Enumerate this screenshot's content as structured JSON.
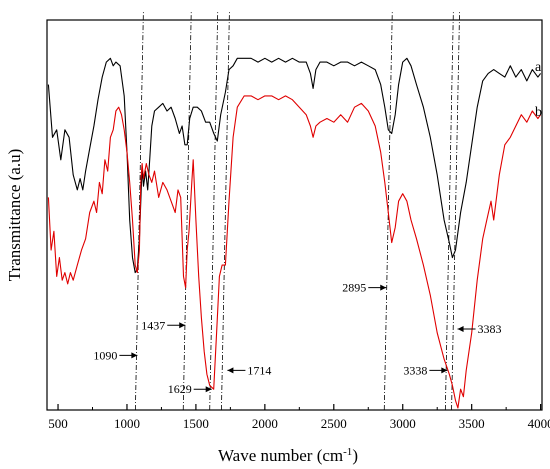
{
  "chart_data": {
    "type": "line",
    "title": "",
    "xlabel": "Wave number (cm",
    "xlabel_sup": "-1",
    "xlabel_close": ")",
    "ylabel": "Transmittance (a.u)",
    "xlim": [
      420,
      4010
    ],
    "ylim": [
      0,
      1
    ],
    "y_tick_labels": "none",
    "x_ticks": [
      500,
      1000,
      1500,
      2000,
      2500,
      3000,
      3500,
      4000
    ],
    "x_tick_labels": [
      "500",
      "1000",
      "1500",
      "2000",
      "2500",
      "3000",
      "3500",
      "4000"
    ],
    "grid": false,
    "series": [
      {
        "name": "a",
        "color": "#000000",
        "points": [
          [
            430,
            0.86
          ],
          [
            460,
            0.72
          ],
          [
            490,
            0.74
          ],
          [
            520,
            0.66
          ],
          [
            550,
            0.74
          ],
          [
            580,
            0.72
          ],
          [
            610,
            0.62
          ],
          [
            640,
            0.58
          ],
          [
            660,
            0.61
          ],
          [
            680,
            0.58
          ],
          [
            700,
            0.63
          ],
          [
            730,
            0.69
          ],
          [
            760,
            0.75
          ],
          [
            790,
            0.82
          ],
          [
            820,
            0.88
          ],
          [
            850,
            0.92
          ],
          [
            880,
            0.93
          ],
          [
            900,
            0.91
          ],
          [
            920,
            0.92
          ],
          [
            950,
            0.91
          ],
          [
            980,
            0.83
          ],
          [
            1000,
            0.68
          ],
          [
            1020,
            0.5
          ],
          [
            1040,
            0.4
          ],
          [
            1060,
            0.36
          ],
          [
            1075,
            0.37
          ],
          [
            1090,
            0.45
          ],
          [
            1100,
            0.55
          ],
          [
            1110,
            0.64
          ],
          [
            1120,
            0.59
          ],
          [
            1135,
            0.63
          ],
          [
            1150,
            0.58
          ],
          [
            1165,
            0.66
          ],
          [
            1180,
            0.75
          ],
          [
            1200,
            0.79
          ],
          [
            1230,
            0.8
          ],
          [
            1260,
            0.81
          ],
          [
            1290,
            0.79
          ],
          [
            1320,
            0.8
          ],
          [
            1350,
            0.77
          ],
          [
            1380,
            0.73
          ],
          [
            1400,
            0.75
          ],
          [
            1420,
            0.7
          ],
          [
            1437,
            0.7
          ],
          [
            1455,
            0.77
          ],
          [
            1480,
            0.8
          ],
          [
            1510,
            0.8
          ],
          [
            1540,
            0.79
          ],
          [
            1570,
            0.76
          ],
          [
            1600,
            0.76
          ],
          [
            1630,
            0.73
          ],
          [
            1655,
            0.71
          ],
          [
            1680,
            0.78
          ],
          [
            1714,
            0.84
          ],
          [
            1740,
            0.9
          ],
          [
            1770,
            0.91
          ],
          [
            1800,
            0.93
          ],
          [
            1850,
            0.93
          ],
          [
            1900,
            0.93
          ],
          [
            1950,
            0.92
          ],
          [
            2000,
            0.93
          ],
          [
            2050,
            0.92
          ],
          [
            2100,
            0.93
          ],
          [
            2150,
            0.92
          ],
          [
            2200,
            0.93
          ],
          [
            2250,
            0.92
          ],
          [
            2300,
            0.92
          ],
          [
            2330,
            0.89
          ],
          [
            2350,
            0.85
          ],
          [
            2370,
            0.9
          ],
          [
            2400,
            0.92
          ],
          [
            2450,
            0.92
          ],
          [
            2500,
            0.91
          ],
          [
            2550,
            0.92
          ],
          [
            2600,
            0.92
          ],
          [
            2650,
            0.91
          ],
          [
            2700,
            0.92
          ],
          [
            2750,
            0.91
          ],
          [
            2800,
            0.9
          ],
          [
            2840,
            0.86
          ],
          [
            2870,
            0.8
          ],
          [
            2895,
            0.74
          ],
          [
            2920,
            0.73
          ],
          [
            2945,
            0.78
          ],
          [
            2970,
            0.86
          ],
          [
            3000,
            0.92
          ],
          [
            3030,
            0.93
          ],
          [
            3060,
            0.91
          ],
          [
            3100,
            0.86
          ],
          [
            3150,
            0.8
          ],
          [
            3200,
            0.72
          ],
          [
            3250,
            0.62
          ],
          [
            3300,
            0.5
          ],
          [
            3338,
            0.44
          ],
          [
            3360,
            0.4
          ],
          [
            3383,
            0.42
          ],
          [
            3420,
            0.52
          ],
          [
            3460,
            0.6
          ],
          [
            3500,
            0.7
          ],
          [
            3540,
            0.8
          ],
          [
            3580,
            0.87
          ],
          [
            3620,
            0.89
          ],
          [
            3660,
            0.9
          ],
          [
            3700,
            0.89
          ],
          [
            3740,
            0.88
          ],
          [
            3780,
            0.91
          ],
          [
            3820,
            0.88
          ],
          [
            3860,
            0.9
          ],
          [
            3900,
            0.87
          ],
          [
            3940,
            0.9
          ],
          [
            3980,
            0.88
          ],
          [
            4000,
            0.89
          ]
        ]
      },
      {
        "name": "b",
        "color": "#e00000",
        "points": [
          [
            430,
            0.56
          ],
          [
            450,
            0.42
          ],
          [
            470,
            0.47
          ],
          [
            490,
            0.35
          ],
          [
            510,
            0.4
          ],
          [
            530,
            0.34
          ],
          [
            550,
            0.36
          ],
          [
            570,
            0.33
          ],
          [
            590,
            0.36
          ],
          [
            610,
            0.34
          ],
          [
            640,
            0.38
          ],
          [
            670,
            0.42
          ],
          [
            700,
            0.45
          ],
          [
            730,
            0.52
          ],
          [
            760,
            0.55
          ],
          [
            780,
            0.52
          ],
          [
            800,
            0.6
          ],
          [
            820,
            0.57
          ],
          [
            840,
            0.66
          ],
          [
            860,
            0.63
          ],
          [
            880,
            0.72
          ],
          [
            900,
            0.74
          ],
          [
            920,
            0.79
          ],
          [
            940,
            0.8
          ],
          [
            960,
            0.78
          ],
          [
            980,
            0.74
          ],
          [
            1000,
            0.68
          ],
          [
            1020,
            0.6
          ],
          [
            1040,
            0.5
          ],
          [
            1060,
            0.38
          ],
          [
            1075,
            0.36
          ],
          [
            1090,
            0.42
          ],
          [
            1100,
            0.6
          ],
          [
            1110,
            0.65
          ],
          [
            1120,
            0.61
          ],
          [
            1140,
            0.65
          ],
          [
            1160,
            0.62
          ],
          [
            1180,
            0.6
          ],
          [
            1200,
            0.63
          ],
          [
            1230,
            0.56
          ],
          [
            1260,
            0.6
          ],
          [
            1290,
            0.58
          ],
          [
            1320,
            0.55
          ],
          [
            1350,
            0.52
          ],
          [
            1370,
            0.58
          ],
          [
            1390,
            0.56
          ],
          [
            1410,
            0.35
          ],
          [
            1425,
            0.32
          ],
          [
            1437,
            0.42
          ],
          [
            1450,
            0.47
          ],
          [
            1470,
            0.6
          ],
          [
            1480,
            0.66
          ],
          [
            1500,
            0.5
          ],
          [
            1520,
            0.35
          ],
          [
            1540,
            0.24
          ],
          [
            1560,
            0.15
          ],
          [
            1580,
            0.09
          ],
          [
            1600,
            0.06
          ],
          [
            1629,
            0.05
          ],
          [
            1650,
            0.2
          ],
          [
            1670,
            0.35
          ],
          [
            1690,
            0.38
          ],
          [
            1714,
            0.38
          ],
          [
            1740,
            0.55
          ],
          [
            1770,
            0.72
          ],
          [
            1800,
            0.8
          ],
          [
            1850,
            0.83
          ],
          [
            1900,
            0.83
          ],
          [
            1950,
            0.82
          ],
          [
            2000,
            0.83
          ],
          [
            2050,
            0.83
          ],
          [
            2100,
            0.82
          ],
          [
            2150,
            0.83
          ],
          [
            2200,
            0.82
          ],
          [
            2250,
            0.8
          ],
          [
            2300,
            0.78
          ],
          [
            2330,
            0.75
          ],
          [
            2350,
            0.72
          ],
          [
            2370,
            0.75
          ],
          [
            2400,
            0.76
          ],
          [
            2450,
            0.77
          ],
          [
            2500,
            0.76
          ],
          [
            2550,
            0.78
          ],
          [
            2600,
            0.76
          ],
          [
            2650,
            0.8
          ],
          [
            2700,
            0.81
          ],
          [
            2750,
            0.79
          ],
          [
            2800,
            0.75
          ],
          [
            2840,
            0.68
          ],
          [
            2870,
            0.6
          ],
          [
            2895,
            0.52
          ],
          [
            2920,
            0.44
          ],
          [
            2945,
            0.48
          ],
          [
            2970,
            0.55
          ],
          [
            3000,
            0.57
          ],
          [
            3030,
            0.55
          ],
          [
            3060,
            0.5
          ],
          [
            3100,
            0.45
          ],
          [
            3150,
            0.38
          ],
          [
            3200,
            0.3
          ],
          [
            3250,
            0.2
          ],
          [
            3300,
            0.13
          ],
          [
            3338,
            0.09
          ],
          [
            3360,
            0.06
          ],
          [
            3383,
            0.02
          ],
          [
            3400,
            0.0
          ],
          [
            3420,
            0.05
          ],
          [
            3440,
            0.03
          ],
          [
            3460,
            0.1
          ],
          [
            3500,
            0.2
          ],
          [
            3540,
            0.34
          ],
          [
            3580,
            0.45
          ],
          [
            3610,
            0.5
          ],
          [
            3640,
            0.55
          ],
          [
            3660,
            0.5
          ],
          [
            3700,
            0.62
          ],
          [
            3740,
            0.7
          ],
          [
            3780,
            0.72
          ],
          [
            3820,
            0.75
          ],
          [
            3860,
            0.78
          ],
          [
            3900,
            0.76
          ],
          [
            3940,
            0.79
          ],
          [
            3980,
            0.77
          ],
          [
            4000,
            0.78
          ]
        ]
      }
    ],
    "series_labels": [
      {
        "text": "a",
        "y": 0.91
      },
      {
        "text": "b",
        "y": 0.79
      }
    ],
    "peak_lines": [
      1090,
      1437,
      1629,
      1714,
      2895,
      3338,
      3383
    ],
    "annotations": [
      {
        "text": "1090",
        "x": 1090,
        "side": "left",
        "y": 0.14
      },
      {
        "text": "1437",
        "x": 1437,
        "side": "left",
        "y": 0.22
      },
      {
        "text": "1629",
        "x": 1629,
        "side": "left",
        "y": 0.05
      },
      {
        "text": "1714",
        "x": 1714,
        "side": "right",
        "y": 0.1
      },
      {
        "text": "2895",
        "x": 2895,
        "side": "left",
        "y": 0.32
      },
      {
        "text": "3338",
        "x": 3338,
        "side": "left",
        "y": 0.1
      },
      {
        "text": "3383",
        "x": 3383,
        "side": "right",
        "y": 0.21
      }
    ]
  }
}
